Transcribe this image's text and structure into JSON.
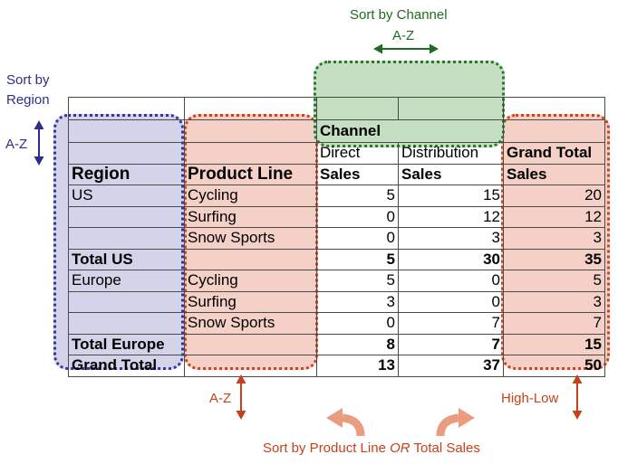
{
  "annotations": {
    "sort_by_channel": "Sort by Channel",
    "channel_az": "A-Z",
    "sort_by": "Sort by",
    "region_word": "Region",
    "region_az": "A-Z",
    "product_az": "A-Z",
    "high_low": "High-Low",
    "bottom_prefix": "Sort by Product Line ",
    "bottom_or": "OR",
    "bottom_suffix": " Total Sales"
  },
  "colors": {
    "region_fill": "#d3d4ea",
    "region_border": "#3535a0",
    "product_fill": "#f4d0c7",
    "product_border": "#d0421c",
    "channel_fill": "#c4dfc2",
    "channel_border": "#2a7a2a"
  },
  "table": {
    "channel_header": "Channel",
    "direct": "Direct",
    "distribution": "Distribution",
    "grand_total": "Grand Total",
    "region": "Region",
    "product_line": "Product Line",
    "sales": "Sales",
    "rows": [
      {
        "region": "US",
        "product": "Cycling",
        "direct": "5",
        "distribution": "15",
        "total": "20"
      },
      {
        "region": "",
        "product": "Surfing",
        "direct": "0",
        "distribution": "12",
        "total": "12"
      },
      {
        "region": "",
        "product": "Snow Sports",
        "direct": "0",
        "distribution": "3",
        "total": "3"
      },
      {
        "region": "Total US",
        "product": "",
        "direct": "5",
        "distribution": "30",
        "total": "35"
      },
      {
        "region": "Europe",
        "product": "Cycling",
        "direct": "5",
        "distribution": "0",
        "total": "5"
      },
      {
        "region": "",
        "product": "Surfing",
        "direct": "3",
        "distribution": "0",
        "total": "3"
      },
      {
        "region": "",
        "product": "Snow Sports",
        "direct": "0",
        "distribution": "7",
        "total": "7"
      },
      {
        "region": "Total Europe",
        "product": "",
        "direct": "8",
        "distribution": "7",
        "total": "15"
      },
      {
        "region": "Grand Total",
        "product": "",
        "direct": "13",
        "distribution": "37",
        "total": "50"
      }
    ]
  }
}
